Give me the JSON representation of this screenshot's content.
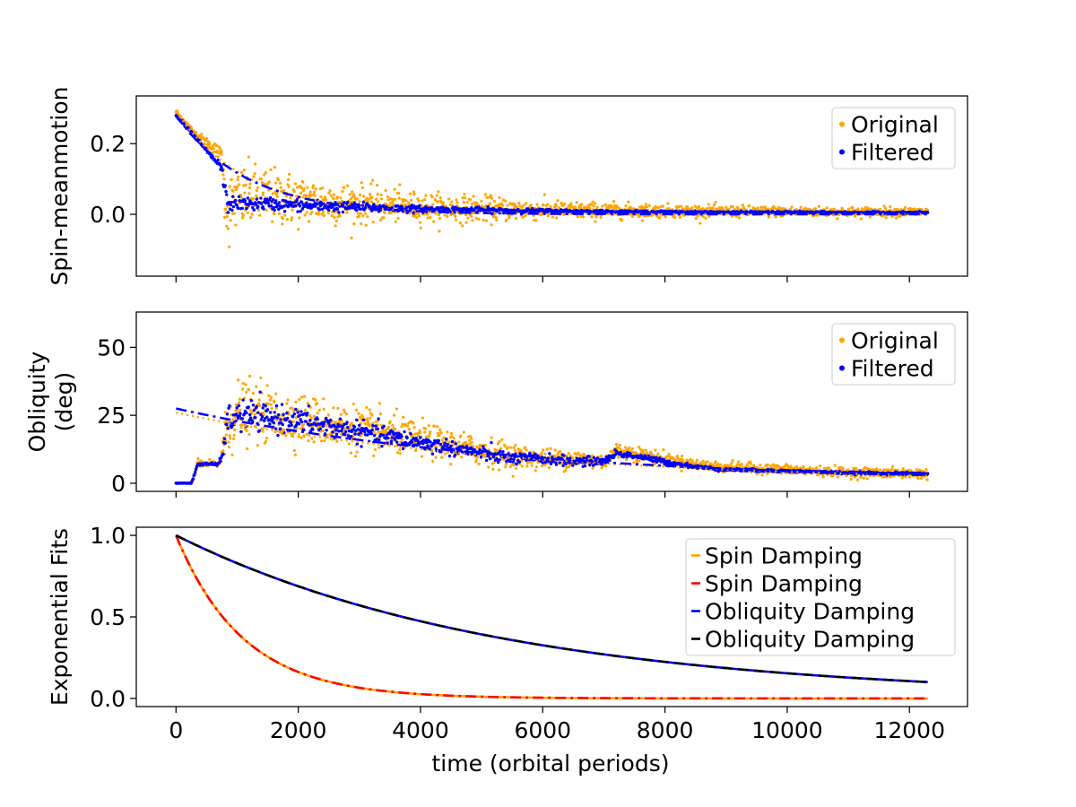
{
  "xaxis": {
    "label": "time (orbital periods)",
    "lim": [
      -650,
      12950
    ],
    "ticks": [
      0,
      2000,
      4000,
      6000,
      8000,
      10000,
      12000
    ],
    "tick_labels": [
      "0",
      "2000",
      "4000",
      "6000",
      "8000",
      "10000",
      "12000"
    ],
    "shared": true
  },
  "colors": {
    "original": "#ffa500",
    "filtered": "#0000ff",
    "spin_fit_a": "#ffa500",
    "spin_fit_b": "#ff0000",
    "obliquity_fit_a": "#0000ff",
    "obliquity_fit_b": "#000000"
  },
  "chart_data": [
    {
      "type": "scatter",
      "panel": "spin",
      "ylabel": [
        "Spin-meanmotion"
      ],
      "ylim": [
        -0.175,
        0.335
      ],
      "yticks": [
        0.0,
        0.2
      ],
      "ytick_labels": [
        "0.0",
        "0.2"
      ],
      "legend": {
        "placement": "upper right",
        "entries": [
          "Original",
          "Filtered"
        ]
      },
      "series": [
        {
          "name": "Original",
          "style": "points",
          "color": "#ffa500",
          "x": [
            0,
            150,
            300,
            450,
            600,
            750,
            800,
            850,
            900,
            1000,
            1200,
            1500,
            2000,
            2500,
            3000,
            3500,
            4000,
            5000,
            6000,
            7000,
            8000,
            9000,
            10000,
            11000,
            12300
          ],
          "y": [
            0.29,
            0.26,
            0.23,
            0.21,
            0.19,
            0.17,
            0.05,
            0.0,
            0.03,
            0.04,
            0.05,
            0.05,
            0.04,
            0.035,
            0.03,
            0.025,
            0.02,
            0.015,
            0.012,
            0.01,
            0.01,
            0.008,
            0.008,
            0.007,
            0.007
          ],
          "spread": [
            0.01,
            0.01,
            0.01,
            0.015,
            0.02,
            0.02,
            0.08,
            0.12,
            0.1,
            0.1,
            0.1,
            0.09,
            0.08,
            0.07,
            0.06,
            0.05,
            0.045,
            0.04,
            0.03,
            0.025,
            0.02,
            0.018,
            0.016,
            0.015,
            0.015
          ]
        },
        {
          "name": "Filtered",
          "style": "points",
          "color": "#0000ff",
          "x": [
            0,
            150,
            300,
            450,
            600,
            750,
            800,
            850,
            900,
            1000,
            1500,
            2000,
            3000,
            4000,
            5000,
            6000,
            7000,
            8000,
            9000,
            10000,
            11000,
            12300
          ],
          "y": [
            0.28,
            0.25,
            0.22,
            0.19,
            0.16,
            0.13,
            0.06,
            0.03,
            0.03,
            0.03,
            0.03,
            0.025,
            0.02,
            0.015,
            0.012,
            0.01,
            0.008,
            0.007,
            0.006,
            0.006,
            0.005,
            0.005
          ],
          "spread": [
            0.005,
            0.005,
            0.005,
            0.005,
            0.006,
            0.01,
            0.03,
            0.03,
            0.025,
            0.02,
            0.02,
            0.018,
            0.015,
            0.01,
            0.008,
            0.006,
            0.004,
            0.003,
            0.003,
            0.003,
            0.003,
            0.003
          ]
        },
        {
          "name": "",
          "style": "dotted-fit",
          "color": "#ffa500",
          "model": {
            "kind": "exponential",
            "A": 0.29,
            "tau": 1150,
            "offset": 0.0
          },
          "x_range": [
            0,
            12300
          ]
        },
        {
          "name": "",
          "style": "dashdot-fit",
          "color": "#0000ff",
          "model": {
            "kind": "exponential",
            "A": 0.28,
            "tau": 1150,
            "offset": 0.0
          },
          "x_range": [
            0,
            12300
          ]
        }
      ]
    },
    {
      "type": "scatter",
      "panel": "obliquity",
      "ylabel": [
        "Obliquity",
        "(deg)"
      ],
      "ylim": [
        -3,
        63
      ],
      "yticks": [
        0,
        25,
        50
      ],
      "ytick_labels": [
        "0",
        "25",
        "50"
      ],
      "legend": {
        "placement": "upper right",
        "entries": [
          "Original",
          "Filtered"
        ]
      },
      "series": [
        {
          "name": "Original",
          "style": "points",
          "color": "#ffa500",
          "x": [
            0,
            250,
            300,
            350,
            500,
            700,
            800,
            850,
            900,
            1000,
            1200,
            1500,
            2000,
            2500,
            3000,
            3500,
            4000,
            4500,
            5000,
            5500,
            6000,
            6500,
            7000,
            7200,
            7500,
            8000,
            8500,
            9000,
            10000,
            11000,
            12300
          ],
          "y": [
            0,
            0,
            3,
            7,
            7,
            7,
            15,
            22,
            24,
            26,
            26,
            25,
            24,
            22,
            20,
            18,
            16,
            14,
            12,
            10,
            9,
            9,
            8,
            12,
            11,
            9,
            7,
            6,
            5,
            4,
            3.5
          ],
          "spread": [
            0.2,
            0.2,
            1,
            1.5,
            1.5,
            1.5,
            10,
            14,
            14,
            13,
            12,
            11,
            10,
            9,
            9,
            8,
            7,
            6,
            6,
            5,
            4,
            4,
            3,
            3,
            3,
            2.5,
            2,
            2,
            2,
            2,
            2
          ]
        },
        {
          "name": "Filtered",
          "style": "points",
          "color": "#0000ff",
          "x": [
            0,
            250,
            300,
            350,
            500,
            700,
            800,
            850,
            900,
            1000,
            1200,
            1500,
            2000,
            2500,
            3000,
            3500,
            4000,
            4500,
            5000,
            5500,
            6000,
            6500,
            7000,
            7200,
            7500,
            8000,
            8500,
            9000,
            10000,
            11000,
            12300
          ],
          "y": [
            0,
            0,
            3,
            7,
            7,
            7,
            15,
            22,
            24,
            25,
            25,
            24,
            23,
            21,
            19,
            17,
            15,
            13,
            11,
            9,
            9,
            8,
            8,
            11,
            10,
            8,
            6,
            5,
            4.5,
            3.8,
            3.5
          ],
          "spread": [
            0.1,
            0.1,
            0.5,
            0.5,
            0.5,
            0.5,
            5,
            7,
            7,
            6,
            6,
            5.5,
            5,
            4.5,
            4,
            4,
            3.5,
            3,
            3,
            2.5,
            2,
            2,
            1.5,
            1.5,
            1.2,
            1,
            0.8,
            0.6,
            0.5,
            0.5,
            0.5
          ]
        },
        {
          "name": "",
          "style": "dotted-fit",
          "color": "#ffa500",
          "model": {
            "kind": "exponential",
            "A": 26,
            "tau": 5500,
            "offset": 0.0
          },
          "x_range": [
            0,
            12300
          ]
        },
        {
          "name": "",
          "style": "dashdot-fit",
          "color": "#0000ff",
          "model": {
            "kind": "exponential",
            "A": 27.5,
            "tau": 5500,
            "offset": 0.0
          },
          "x_range": [
            0,
            12300
          ]
        }
      ]
    },
    {
      "type": "line",
      "panel": "fits",
      "ylabel": [
        "Exponential Fits"
      ],
      "ylim": [
        -0.05,
        1.05
      ],
      "yticks": [
        0.0,
        0.5,
        1.0
      ],
      "ytick_labels": [
        "0.0",
        "0.5",
        "1.0"
      ],
      "legend": {
        "placement": "upper right",
        "entries": [
          "Spin Damping",
          "Spin Damping",
          "Obliquity Damping",
          "Obliquity Damping"
        ]
      },
      "series": [
        {
          "name": "Spin Damping",
          "style": "solid",
          "color": "#ffa500",
          "model": {
            "kind": "exponential",
            "A": 1.0,
            "tau": 1100,
            "offset": 0.0
          },
          "x_range": [
            0,
            12300
          ]
        },
        {
          "name": "Spin Damping",
          "style": "dashdot",
          "color": "#ff0000",
          "model": {
            "kind": "exponential",
            "A": 1.0,
            "tau": 1100,
            "offset": 0.0
          },
          "x_range": [
            0,
            12300
          ]
        },
        {
          "name": "Obliquity Damping",
          "style": "solid",
          "color": "#0000ff",
          "model": {
            "kind": "exponential",
            "A": 1.0,
            "tau": 5350,
            "offset": 0.0
          },
          "x_range": [
            0,
            12300
          ]
        },
        {
          "name": "Obliquity Damping",
          "style": "dashed",
          "color": "#000000",
          "model": {
            "kind": "exponential",
            "A": 1.0,
            "tau": 5350,
            "offset": 0.0
          },
          "x_range": [
            0,
            12300
          ]
        }
      ]
    }
  ]
}
